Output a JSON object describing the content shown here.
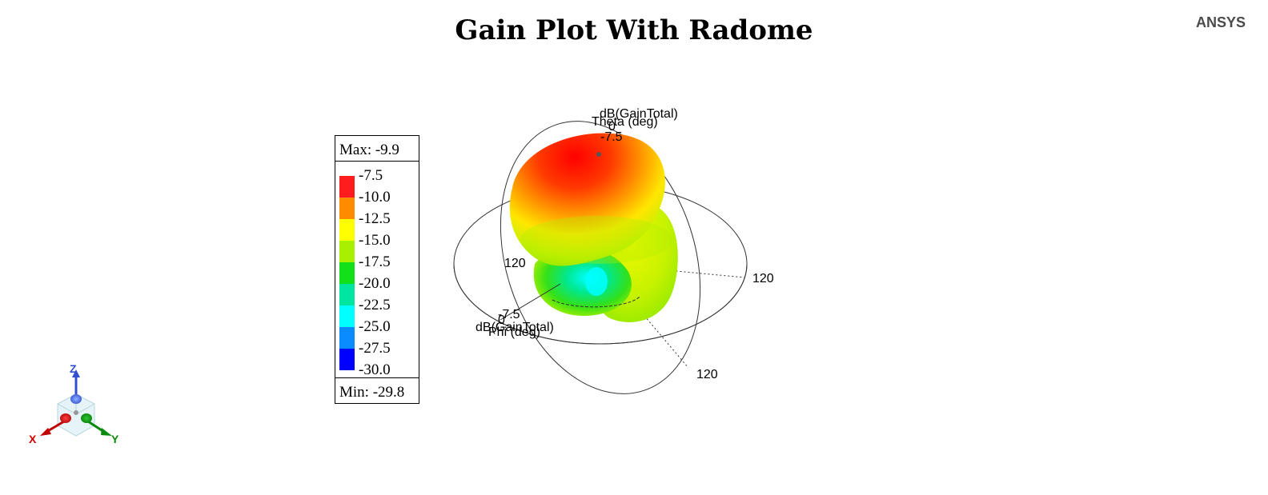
{
  "title": "Gain Plot With Radome",
  "brand": "ANSYS",
  "legend": {
    "max_label": "Max: -9.9",
    "min_label": "Min: -29.8",
    "colors": [
      "#ff1c1c",
      "#ff8c00",
      "#ffff00",
      "#a8f000",
      "#12e01a",
      "#00e6a0",
      "#00ffff",
      "#0a8cff",
      "#0000ff"
    ],
    "ticks": [
      "-7.5",
      "-10.0",
      "-12.5",
      "-15.0",
      "-17.5",
      "-20.0",
      "-22.5",
      "-25.0",
      "-27.5",
      "-30.0"
    ]
  },
  "plot_labels": {
    "theta_quantity": "dB(GainTotal)",
    "theta_axis": "Theta (deg)",
    "theta_zero": "0",
    "theta_value": "-7.5",
    "phi_value": "-7.5",
    "phi_zero": "0",
    "phi_quantity": "dB(GainTotal)",
    "phi_axis": "Phi (deg)",
    "ring_label_left": "120",
    "ring_label_right": "120",
    "ring_label_bottom": "120"
  },
  "triad": {
    "x_label": "X",
    "y_label": "Y",
    "z_label": "Z"
  },
  "chart_data": {
    "type": "heatmap",
    "title": "Gain Plot With Radome",
    "quantity": "dB(GainTotal)",
    "max": -9.9,
    "min": -29.8,
    "colorbar_ticks": [
      -7.5,
      -10.0,
      -12.5,
      -15.0,
      -17.5,
      -20.0,
      -22.5,
      -25.0,
      -27.5,
      -30.0
    ],
    "colorbar_colors": [
      "#ff1c1c",
      "#ff8c00",
      "#ffff00",
      "#a8f000",
      "#12e01a",
      "#00e6a0",
      "#00ffff",
      "#0a8cff",
      "#0000ff"
    ],
    "axes": [
      "Theta (deg)",
      "Phi (deg)"
    ],
    "ring_ticks": [
      0,
      120
    ]
  }
}
